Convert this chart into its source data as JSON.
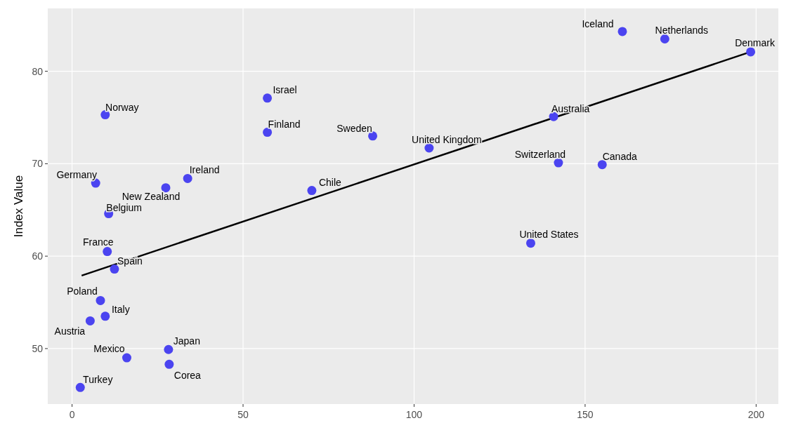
{
  "chart_data": {
    "type": "scatter",
    "ylabel": "Index Value",
    "xlim": [
      -7.1,
      206.5
    ],
    "ylim": [
      44,
      86.8
    ],
    "xticks": [
      0,
      50,
      100,
      150,
      200
    ],
    "yticks": [
      50,
      60,
      70,
      80
    ],
    "grid": true,
    "marker": "circle",
    "series": [
      {
        "color": "#4b44f0",
        "x": [
          160.9,
          173.3,
          198.4,
          57.1,
          9.7,
          140.8,
          57.1,
          87.9,
          104.4,
          142.2,
          155.0,
          6.9,
          33.8,
          27.4,
          70.1,
          10.7,
          134.1,
          10.3,
          12.4,
          8.3,
          9.7,
          5.3,
          28.2,
          16.0,
          28.4,
          2.4
        ],
        "values": [
          84.3,
          83.5,
          82.1,
          77.1,
          75.3,
          75.1,
          73.4,
          73.0,
          71.7,
          70.1,
          69.9,
          67.9,
          68.4,
          67.4,
          67.1,
          64.6,
          61.4,
          60.5,
          58.6,
          55.2,
          53.5,
          53.0,
          49.9,
          49.0,
          48.3,
          45.8
        ]
      },
      {
        "type": "line",
        "marker": "none",
        "color": "#000000",
        "x": [
          2.8,
          198.4
        ],
        "values": [
          57.9,
          82.1
        ]
      }
    ],
    "annotations": [
      {
        "text": "Iceland",
        "x": 160.9,
        "y": 84.3
      },
      {
        "text": "Netherlands",
        "x": 173.3,
        "y": 83.5
      },
      {
        "text": "Denmark",
        "x": 198.4,
        "y": 82.1
      },
      {
        "text": "Israel",
        "x": 57.1,
        "y": 77.1
      },
      {
        "text": "Norway",
        "x": 9.7,
        "y": 75.3
      },
      {
        "text": "Australia",
        "x": 140.8,
        "y": 75.1
      },
      {
        "text": "Finland",
        "x": 57.1,
        "y": 73.4
      },
      {
        "text": "Sweden",
        "x": 87.9,
        "y": 73.0
      },
      {
        "text": "United Kingdom",
        "x": 104.4,
        "y": 71.7
      },
      {
        "text": "Switzerland",
        "x": 142.2,
        "y": 70.1
      },
      {
        "text": "Canada",
        "x": 155.0,
        "y": 69.9
      },
      {
        "text": "Germany",
        "x": 6.9,
        "y": 67.9
      },
      {
        "text": "Ireland",
        "x": 33.8,
        "y": 68.4
      },
      {
        "text": "New Zealand",
        "x": 27.4,
        "y": 67.4
      },
      {
        "text": "Chile",
        "x": 70.1,
        "y": 67.1
      },
      {
        "text": "Belgium",
        "x": 10.7,
        "y": 64.6
      },
      {
        "text": "United States",
        "x": 134.1,
        "y": 61.4
      },
      {
        "text": "France",
        "x": 10.3,
        "y": 60.5
      },
      {
        "text": "Spain",
        "x": 12.4,
        "y": 58.6
      },
      {
        "text": "Poland",
        "x": 8.3,
        "y": 55.2
      },
      {
        "text": "Italy",
        "x": 9.7,
        "y": 53.5
      },
      {
        "text": "Austria",
        "x": 5.3,
        "y": 53.0
      },
      {
        "text": "Japan",
        "x": 28.2,
        "y": 49.9
      },
      {
        "text": "Mexico",
        "x": 16.0,
        "y": 49.0
      },
      {
        "text": "Corea",
        "x": 28.4,
        "y": 48.3
      },
      {
        "text": "Turkey",
        "x": 2.4,
        "y": 45.8
      }
    ]
  }
}
